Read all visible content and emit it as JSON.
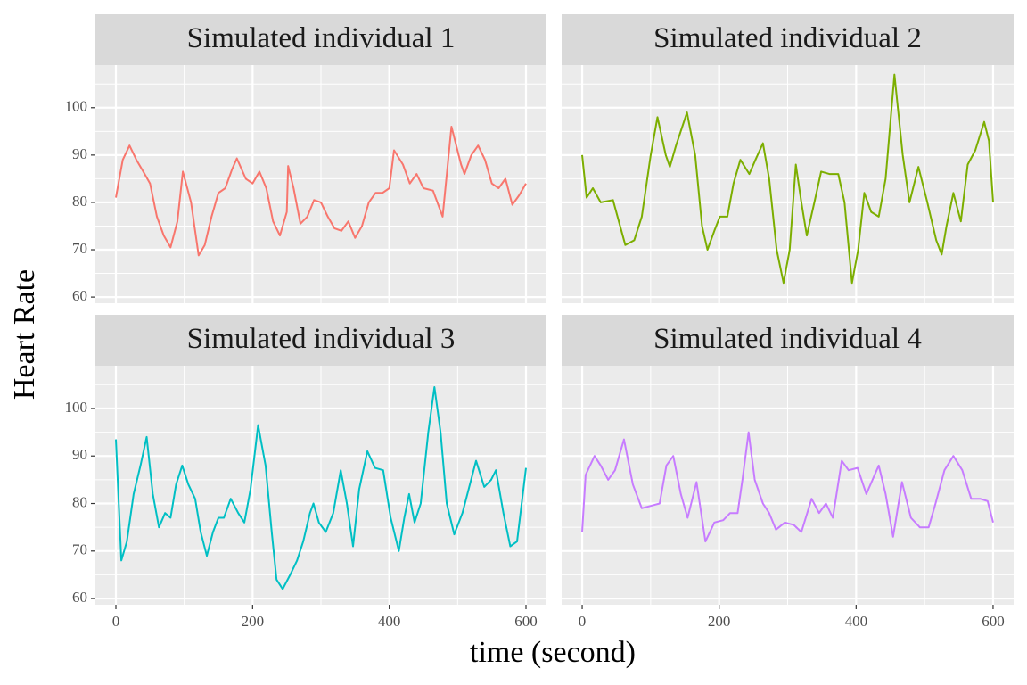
{
  "y_label": "Heart Rate",
  "x_label": "time (second)",
  "chart_data": [
    {
      "type": "line",
      "title": "Simulated individual 1",
      "color": "#F8766D",
      "x": [
        0,
        10,
        20,
        30,
        40,
        50,
        60,
        70,
        80,
        90,
        98,
        110,
        121,
        130,
        140,
        150,
        160,
        170,
        177,
        190,
        200,
        210,
        220,
        230,
        240,
        250,
        252,
        260,
        270,
        280,
        290,
        300,
        310,
        320,
        330,
        340,
        350,
        360,
        370,
        380,
        390,
        400,
        407,
        420,
        430,
        440,
        450,
        464,
        478,
        491,
        505,
        510,
        520,
        530,
        540,
        550,
        560,
        570,
        580,
        590,
        600
      ],
      "values": [
        81,
        89,
        92,
        89,
        86.5,
        84,
        77,
        73,
        70.5,
        76,
        86.5,
        80,
        68.8,
        71,
        77,
        82,
        83,
        87,
        89.3,
        85,
        84,
        86.5,
        83,
        76,
        73,
        78,
        87.7,
        83,
        75.5,
        77,
        80.5,
        80,
        77,
        74.5,
        74,
        76,
        72.5,
        75,
        80,
        82,
        82,
        83,
        91,
        88,
        84,
        86,
        83,
        82.5,
        77,
        96,
        88,
        86,
        90,
        92,
        89,
        84,
        83,
        85,
        79.5,
        81.5,
        84
      ],
      "xlim": [
        -30,
        630
      ],
      "ylim": [
        58.7,
        109
      ],
      "xticks": [
        0,
        200,
        400,
        600
      ],
      "yticks": [
        60,
        70,
        80,
        90,
        100
      ],
      "minor_xticks": [
        100,
        300,
        500
      ],
      "minor_yticks": [
        65,
        75,
        85,
        95,
        105
      ],
      "grid": true
    },
    {
      "type": "line",
      "title": "Simulated individual 2",
      "color": "#7CAE00",
      "x": [
        0,
        6.5,
        15.5,
        27,
        45,
        63,
        76,
        87,
        100,
        110,
        122,
        128,
        137,
        153,
        165,
        175,
        183,
        193,
        201,
        212,
        221,
        231,
        244,
        253,
        264,
        273,
        284,
        294,
        303,
        312,
        320,
        328,
        339,
        349,
        361,
        374,
        383,
        394,
        403,
        412,
        422,
        433,
        443,
        456,
        468,
        478,
        491,
        504,
        517,
        525,
        532,
        542,
        553,
        563,
        574,
        587,
        594,
        600
      ],
      "values": [
        90,
        81,
        83,
        80,
        80.5,
        71,
        72,
        77,
        90,
        98,
        90,
        87.5,
        92,
        99,
        90,
        75,
        70,
        74,
        77,
        77,
        84,
        89,
        86,
        89,
        92.5,
        85,
        70,
        63,
        70,
        88,
        80,
        73,
        80,
        86.5,
        86,
        86,
        80,
        63,
        70,
        82,
        78,
        77,
        85,
        107,
        90,
        80,
        87.5,
        80,
        72,
        69,
        75,
        82,
        76,
        88,
        91,
        97,
        93,
        80
      ],
      "xlim": [
        -30,
        630
      ],
      "ylim": [
        58.7,
        109
      ],
      "xticks": [
        0,
        200,
        400,
        600
      ],
      "yticks": [
        60,
        70,
        80,
        90,
        100
      ],
      "minor_xticks": [
        100,
        300,
        500
      ],
      "minor_yticks": [
        65,
        75,
        85,
        95,
        105
      ],
      "grid": true
    },
    {
      "type": "line",
      "title": "Simulated individual 3",
      "color": "#00BFC4",
      "x": [
        0,
        8,
        16,
        26,
        36,
        45,
        54,
        63,
        72,
        80,
        88,
        97,
        106,
        116,
        124,
        133,
        142,
        150,
        158,
        168,
        179,
        188,
        197,
        208,
        219,
        228,
        235,
        244,
        255,
        265,
        274,
        284,
        289,
        297,
        307,
        318,
        329,
        338,
        347,
        356,
        368,
        379,
        391,
        402,
        414,
        422,
        429,
        437,
        446,
        457,
        466,
        475,
        484,
        495,
        507,
        527,
        539,
        549,
        556,
        567,
        577,
        587,
        600
      ],
      "values": [
        93.5,
        68,
        72,
        82,
        88,
        94,
        82,
        75,
        78,
        77,
        84,
        88,
        84,
        81,
        74,
        69,
        74,
        77,
        77,
        81,
        78,
        76,
        83,
        96.5,
        88,
        74,
        64,
        62,
        65,
        68,
        72,
        78,
        80,
        76,
        74,
        78,
        87,
        80,
        71,
        83,
        91,
        87.5,
        87,
        77,
        70,
        77,
        82,
        76,
        80,
        95,
        104.5,
        95,
        80,
        73.5,
        78,
        89,
        83.5,
        85,
        87,
        78,
        71,
        72,
        87.5
      ],
      "xlim": [
        -30,
        630
      ],
      "ylim": [
        58.7,
        109
      ],
      "xticks": [
        0,
        200,
        400,
        600
      ],
      "yticks": [
        60,
        70,
        80,
        90,
        100
      ],
      "minor_xticks": [
        100,
        300,
        500
      ],
      "minor_yticks": [
        65,
        75,
        85,
        95,
        105
      ],
      "grid": true
    },
    {
      "type": "line",
      "title": "Simulated individual 4",
      "color": "#C77CFF",
      "x": [
        0,
        5,
        18,
        27,
        38,
        48,
        61,
        74,
        87,
        100,
        113,
        123,
        133,
        144,
        154,
        167,
        180,
        193,
        206,
        216,
        227,
        234,
        243,
        252,
        264,
        273,
        283,
        296,
        309,
        320,
        335,
        346,
        356,
        366,
        379,
        389,
        402,
        415,
        433,
        443,
        454,
        467,
        480,
        493,
        506,
        516,
        529,
        542,
        555,
        568,
        581,
        592,
        600
      ],
      "values": [
        74,
        86,
        90,
        88,
        85,
        87,
        93.5,
        84,
        79,
        79.5,
        80,
        88,
        90,
        82,
        77,
        84.5,
        72,
        76,
        76.5,
        78,
        78,
        85,
        95,
        85,
        80,
        78,
        74.5,
        76,
        75.5,
        74,
        81,
        78,
        80,
        77,
        89,
        87,
        87.5,
        82,
        88,
        82,
        73,
        84.5,
        77,
        75,
        75,
        80,
        87,
        90,
        87,
        81,
        81,
        80.5,
        76
      ],
      "xlim": [
        -30,
        630
      ],
      "ylim": [
        58.7,
        109
      ],
      "xticks": [
        0,
        200,
        400,
        600
      ],
      "yticks": [
        60,
        70,
        80,
        90,
        100
      ],
      "minor_xticks": [
        100,
        300,
        500
      ],
      "minor_yticks": [
        65,
        75,
        85,
        95,
        105
      ],
      "grid": true
    }
  ]
}
